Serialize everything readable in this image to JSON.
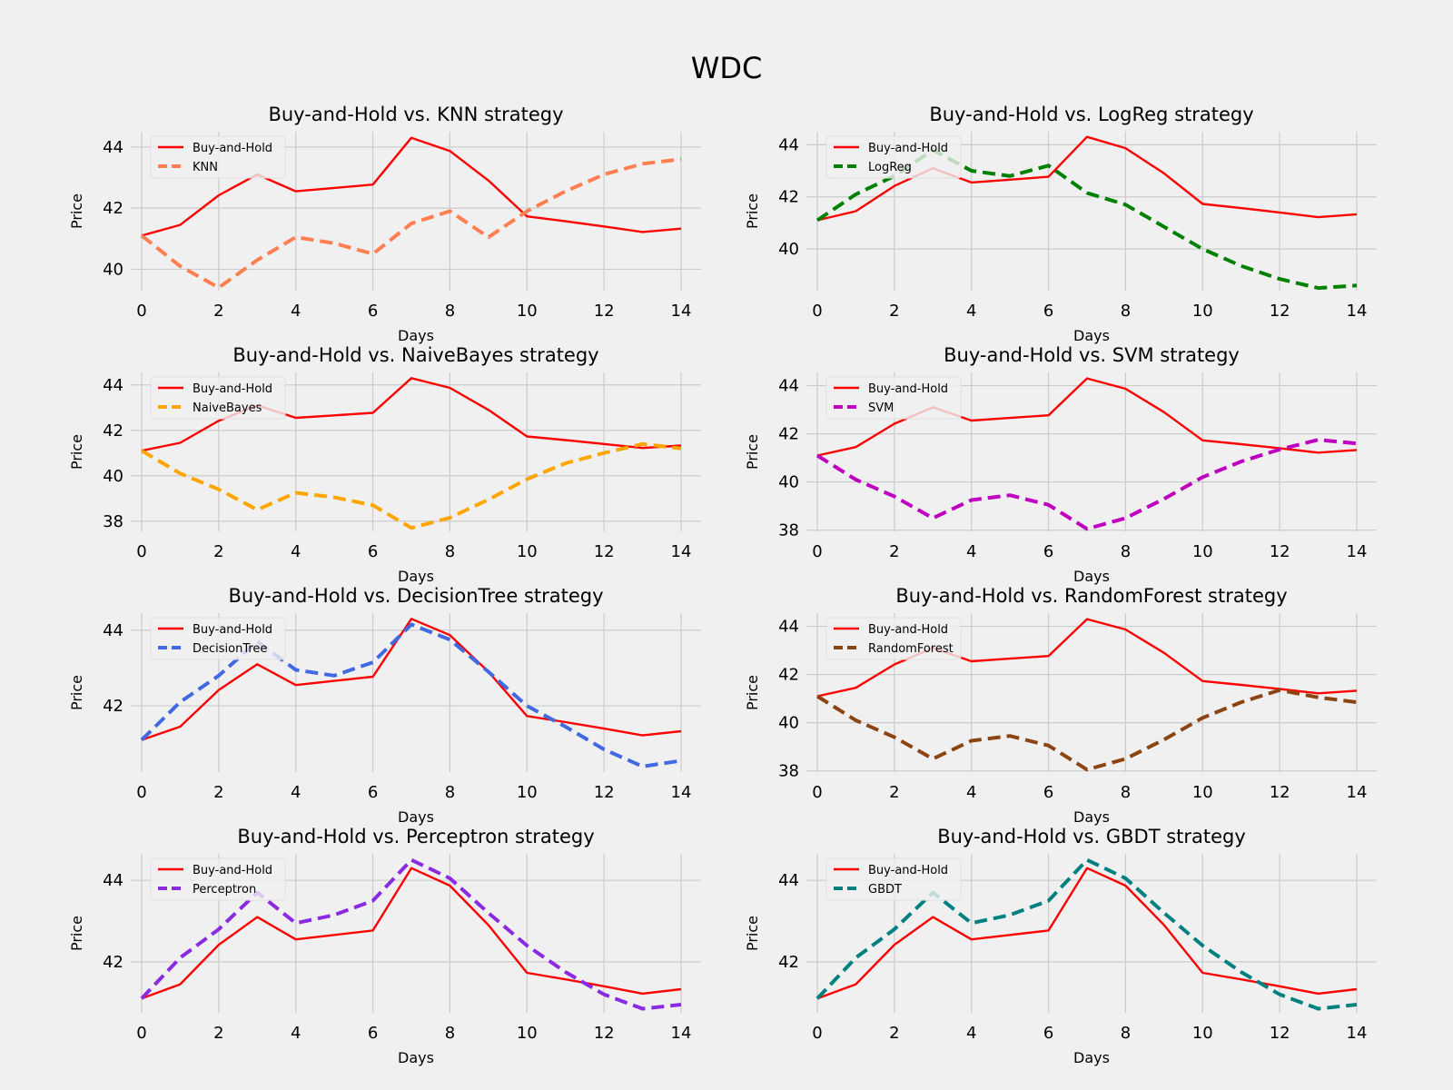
{
  "figure_title": "WDC",
  "chart_data": [
    {
      "type": "line",
      "title": "Buy-and-Hold vs. KNN strategy",
      "xlabel": "Days",
      "ylabel": "Price",
      "xlim": [
        0,
        14
      ],
      "ylim": [
        39.3,
        44.5
      ],
      "xticks": [
        0,
        2,
        4,
        6,
        8,
        10,
        12,
        14
      ],
      "yticks": [
        40,
        42,
        44
      ],
      "x": [
        0,
        1,
        2,
        3,
        4,
        5,
        6,
        7,
        8,
        9,
        10,
        11,
        12,
        13,
        14
      ],
      "legend": "upper-left",
      "series": [
        {
          "name": "Buy-and-Hold",
          "color": "#ff0000",
          "dash": "solid",
          "values": [
            41.1,
            41.45,
            42.42,
            43.1,
            42.55,
            42.66,
            42.77,
            44.3,
            43.87,
            42.9,
            41.73,
            41.57,
            41.4,
            41.22,
            41.33
          ]
        },
        {
          "name": "KNN",
          "color": "#ff7f50",
          "dash": "dashed",
          "values": [
            41.1,
            40.1,
            39.4,
            40.3,
            41.05,
            40.85,
            40.5,
            41.5,
            41.9,
            41.05,
            41.9,
            42.55,
            43.1,
            43.45,
            43.6
          ]
        }
      ]
    },
    {
      "type": "line",
      "title": "Buy-and-Hold vs. LogReg strategy",
      "xlabel": "Days",
      "ylabel": "Price",
      "xlim": [
        0,
        14
      ],
      "ylim": [
        38.4,
        44.5
      ],
      "xticks": [
        0,
        2,
        4,
        6,
        8,
        10,
        12,
        14
      ],
      "yticks": [
        40,
        42,
        44
      ],
      "x": [
        0,
        1,
        2,
        3,
        4,
        5,
        6,
        7,
        8,
        9,
        10,
        11,
        12,
        13,
        14
      ],
      "legend": "upper-left",
      "series": [
        {
          "name": "Buy-and-Hold",
          "color": "#ff0000",
          "dash": "solid",
          "values": [
            41.1,
            41.45,
            42.42,
            43.1,
            42.55,
            42.66,
            42.77,
            44.3,
            43.87,
            42.9,
            41.73,
            41.57,
            41.4,
            41.22,
            41.33
          ]
        },
        {
          "name": "LogReg",
          "color": "#008000",
          "dash": "dashed",
          "values": [
            41.1,
            42.1,
            42.8,
            43.8,
            43.0,
            42.8,
            43.2,
            42.15,
            41.7,
            40.85,
            40.0,
            39.35,
            38.85,
            38.5,
            38.6
          ]
        }
      ]
    },
    {
      "type": "line",
      "title": "Buy-and-Hold vs. NaiveBayes strategy",
      "xlabel": "Days",
      "ylabel": "Price",
      "xlim": [
        0,
        14
      ],
      "ylim": [
        37.55,
        44.55
      ],
      "xticks": [
        0,
        2,
        4,
        6,
        8,
        10,
        12,
        14
      ],
      "yticks": [
        38,
        40,
        42,
        44
      ],
      "x": [
        0,
        1,
        2,
        3,
        4,
        5,
        6,
        7,
        8,
        9,
        10,
        11,
        12,
        13,
        14
      ],
      "legend": "upper-left",
      "series": [
        {
          "name": "Buy-and-Hold",
          "color": "#ff0000",
          "dash": "solid",
          "values": [
            41.1,
            41.45,
            42.42,
            43.1,
            42.55,
            42.66,
            42.77,
            44.3,
            43.87,
            42.9,
            41.73,
            41.57,
            41.4,
            41.22,
            41.33
          ]
        },
        {
          "name": "NaiveBayes",
          "color": "#ffa500",
          "dash": "dashed",
          "values": [
            41.1,
            40.1,
            39.4,
            38.5,
            39.25,
            39.05,
            38.7,
            37.7,
            38.15,
            38.95,
            39.85,
            40.55,
            41.0,
            41.4,
            41.2
          ]
        }
      ]
    },
    {
      "type": "line",
      "title": "Buy-and-Hold vs. SVM strategy",
      "xlabel": "Days",
      "ylabel": "Price",
      "xlim": [
        0,
        14
      ],
      "ylim": [
        37.95,
        44.55
      ],
      "xticks": [
        0,
        2,
        4,
        6,
        8,
        10,
        12,
        14
      ],
      "yticks": [
        38,
        40,
        42,
        44
      ],
      "x": [
        0,
        1,
        2,
        3,
        4,
        5,
        6,
        7,
        8,
        9,
        10,
        11,
        12,
        13,
        14
      ],
      "legend": "upper-left",
      "series": [
        {
          "name": "Buy-and-Hold",
          "color": "#ff0000",
          "dash": "solid",
          "values": [
            41.1,
            41.45,
            42.42,
            43.1,
            42.55,
            42.66,
            42.77,
            44.3,
            43.87,
            42.9,
            41.73,
            41.57,
            41.4,
            41.22,
            41.33
          ]
        },
        {
          "name": "SVM",
          "color": "#c000c0",
          "dash": "dashed",
          "values": [
            41.1,
            40.1,
            39.4,
            38.5,
            39.25,
            39.45,
            39.05,
            38.05,
            38.5,
            39.3,
            40.2,
            40.85,
            41.35,
            41.75,
            41.6
          ]
        }
      ]
    },
    {
      "type": "line",
      "title": "Buy-and-Hold vs. DecisionTree strategy",
      "xlabel": "Days",
      "ylabel": "Price",
      "xlim": [
        0,
        14
      ],
      "ylim": [
        40.25,
        44.45
      ],
      "xticks": [
        0,
        2,
        4,
        6,
        8,
        10,
        12,
        14
      ],
      "yticks": [
        42,
        44
      ],
      "x": [
        0,
        1,
        2,
        3,
        4,
        5,
        6,
        7,
        8,
        9,
        10,
        11,
        12,
        13,
        14
      ],
      "legend": "upper-left",
      "series": [
        {
          "name": "Buy-and-Hold",
          "color": "#ff0000",
          "dash": "solid",
          "values": [
            41.1,
            41.45,
            42.42,
            43.1,
            42.55,
            42.66,
            42.77,
            44.3,
            43.87,
            42.9,
            41.73,
            41.57,
            41.4,
            41.22,
            41.33
          ]
        },
        {
          "name": "DecisionTree",
          "color": "#4169e1",
          "dash": "dashed",
          "values": [
            41.1,
            42.1,
            42.8,
            43.7,
            42.95,
            42.8,
            43.15,
            44.15,
            43.75,
            42.9,
            42.0,
            41.45,
            40.85,
            40.4,
            40.55
          ]
        }
      ]
    },
    {
      "type": "line",
      "title": "Buy-and-Hold vs. RandomForest strategy",
      "xlabel": "Days",
      "ylabel": "Price",
      "xlim": [
        0,
        14
      ],
      "ylim": [
        37.95,
        44.55
      ],
      "xticks": [
        0,
        2,
        4,
        6,
        8,
        10,
        12,
        14
      ],
      "yticks": [
        38,
        40,
        42,
        44
      ],
      "x": [
        0,
        1,
        2,
        3,
        4,
        5,
        6,
        7,
        8,
        9,
        10,
        11,
        12,
        13,
        14
      ],
      "legend": "upper-left",
      "series": [
        {
          "name": "Buy-and-Hold",
          "color": "#ff0000",
          "dash": "solid",
          "values": [
            41.1,
            41.45,
            42.42,
            43.1,
            42.55,
            42.66,
            42.77,
            44.3,
            43.87,
            42.9,
            41.73,
            41.57,
            41.4,
            41.22,
            41.33
          ]
        },
        {
          "name": "RandomForest",
          "color": "#8b4513",
          "dash": "dashed",
          "values": [
            41.1,
            40.1,
            39.4,
            38.5,
            39.25,
            39.45,
            39.05,
            38.05,
            38.5,
            39.3,
            40.2,
            40.85,
            41.35,
            41.05,
            40.85
          ]
        }
      ]
    },
    {
      "type": "line",
      "title": "Buy-and-Hold vs. Perceptron strategy",
      "xlabel": "Days",
      "ylabel": "Price",
      "xlim": [
        0,
        14
      ],
      "ylim": [
        40.75,
        44.65
      ],
      "xticks": [
        0,
        2,
        4,
        6,
        8,
        10,
        12,
        14
      ],
      "yticks": [
        42,
        44
      ],
      "x": [
        0,
        1,
        2,
        3,
        4,
        5,
        6,
        7,
        8,
        9,
        10,
        11,
        12,
        13,
        14
      ],
      "legend": "upper-left",
      "series": [
        {
          "name": "Buy-and-Hold",
          "color": "#ff0000",
          "dash": "solid",
          "values": [
            41.1,
            41.45,
            42.42,
            43.1,
            42.55,
            42.66,
            42.77,
            44.3,
            43.87,
            42.9,
            41.73,
            41.57,
            41.4,
            41.22,
            41.33
          ]
        },
        {
          "name": "Perceptron",
          "color": "#8a2be2",
          "dash": "dashed",
          "values": [
            41.1,
            42.1,
            42.8,
            43.7,
            42.95,
            43.15,
            43.5,
            44.5,
            44.05,
            43.2,
            42.4,
            41.75,
            41.2,
            40.85,
            40.95
          ]
        }
      ]
    },
    {
      "type": "line",
      "title": "Buy-and-Hold vs. GBDT strategy",
      "xlabel": "Days",
      "ylabel": "Price",
      "xlim": [
        0,
        14
      ],
      "ylim": [
        40.75,
        44.65
      ],
      "xticks": [
        0,
        2,
        4,
        6,
        8,
        10,
        12,
        14
      ],
      "yticks": [
        42,
        44
      ],
      "x": [
        0,
        1,
        2,
        3,
        4,
        5,
        6,
        7,
        8,
        9,
        10,
        11,
        12,
        13,
        14
      ],
      "legend": "upper-left",
      "series": [
        {
          "name": "Buy-and-Hold",
          "color": "#ff0000",
          "dash": "solid",
          "values": [
            41.1,
            41.45,
            42.42,
            43.1,
            42.55,
            42.66,
            42.77,
            44.3,
            43.87,
            42.9,
            41.73,
            41.57,
            41.4,
            41.22,
            41.33
          ]
        },
        {
          "name": "GBDT",
          "color": "#008080",
          "dash": "dashed",
          "values": [
            41.1,
            42.1,
            42.8,
            43.7,
            42.95,
            43.15,
            43.5,
            44.5,
            44.05,
            43.2,
            42.4,
            41.75,
            41.2,
            40.85,
            40.95
          ]
        }
      ]
    }
  ]
}
